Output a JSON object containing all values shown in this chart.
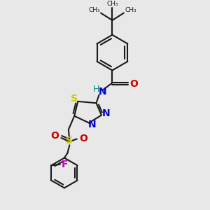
{
  "bg_color": "#e8e8e8",
  "bond_color": "#1a1a1a",
  "bond_width": 1.5,
  "S_color": "#cccc00",
  "N_color": "#0000cc",
  "O_color": "#cc0000",
  "F_color": "#cc00cc",
  "H_color": "#008888",
  "C_color": "#1a1a1a",
  "font_size": 9,
  "figsize": [
    3.0,
    3.0
  ],
  "dpi": 100,
  "xlim": [
    0,
    10
  ],
  "ylim": [
    0,
    10
  ]
}
